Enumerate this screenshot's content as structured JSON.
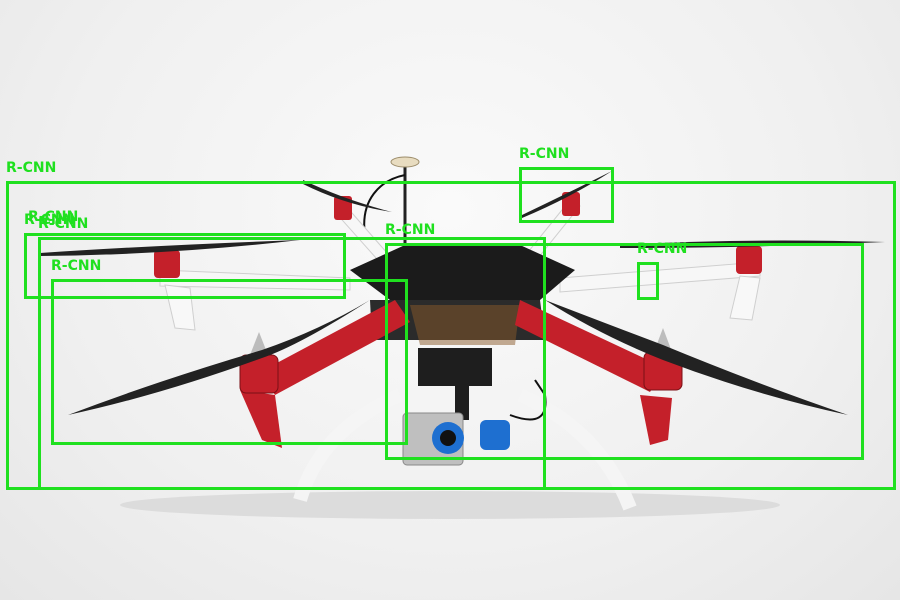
{
  "image": {
    "subject": "hexacopter drone with camera gimbal on white background",
    "colors": {
      "background": "#f2f2f2",
      "arm_red": "#c4202a",
      "plate_black": "#1b1b1b",
      "prop_black": "#222222",
      "leg_white": "#f4f4f4",
      "gimbal_blue": "#1e6fd0",
      "box_green": "#1fe01f"
    }
  },
  "detections": [
    {
      "label": "R-CNN"
    },
    {
      "label": "R-CNN"
    },
    {
      "label": "R-CNN"
    },
    {
      "label": "R-CNN"
    },
    {
      "label": "R-CNN"
    },
    {
      "label": "R-CNN"
    },
    {
      "label": "R-CNN"
    },
    {
      "label": "R-CNN"
    }
  ]
}
